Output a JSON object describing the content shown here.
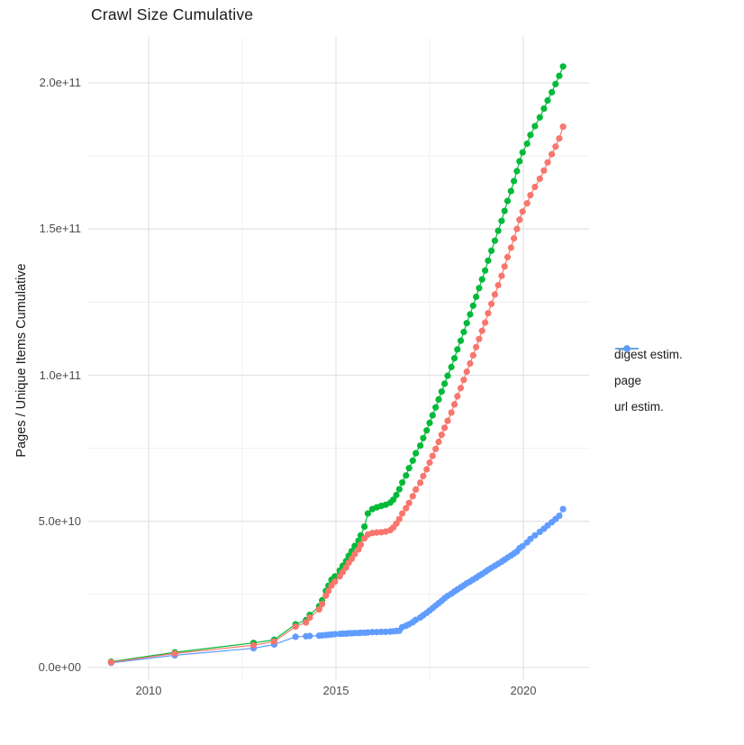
{
  "title": "Crawl Size Cumulative",
  "axes": {
    "y_title": "Pages / Unique Items Cumulative",
    "y_ticks": [
      "0.0e+00",
      "5.0e+10",
      "1.0e+11",
      "1.5e+11",
      "2.0e+11"
    ],
    "x_ticks": [
      "2010",
      "2015",
      "2020"
    ]
  },
  "legend": {
    "position": "right",
    "items": [
      {
        "label": "digest estim.",
        "color": "#F8766D"
      },
      {
        "label": "page",
        "color": "#00BA38"
      },
      {
        "label": "url estim.",
        "color": "#619CFF"
      }
    ]
  },
  "chart_data": {
    "type": "scatter",
    "title": "Crawl Size Cumulative",
    "xlabel": "",
    "ylabel": "Pages / Unique Items Cumulative",
    "x_unit": "year",
    "xlim": [
      2008.4,
      2021.75
    ],
    "ylim": [
      0,
      210000000000.0
    ],
    "grid": true,
    "x_major_gridlines": [
      2010,
      2015,
      2020
    ],
    "x_minor_gridlines": [
      2012.5,
      2017.5
    ],
    "y_major_gridlines": [
      0,
      50000000000.0,
      100000000000.0,
      150000000000.0,
      200000000000.0
    ],
    "y_minor_gridlines": [
      25000000000.0,
      75000000000.0,
      125000000000.0,
      175000000000.0
    ],
    "legend_position": "right",
    "value_scale": 10000000000.0,
    "x": [
      2009.0,
      2010.7,
      2012.8,
      2013.35,
      2013.92,
      2014.2,
      2014.3,
      2014.55,
      2014.63,
      2014.73,
      2014.8,
      2014.88,
      2014.97,
      2015.1,
      2015.18,
      2015.27,
      2015.34,
      2015.42,
      2015.5,
      2015.6,
      2015.66,
      2015.76,
      2015.85,
      2015.97,
      2016.09,
      2016.21,
      2016.33,
      2016.45,
      2016.53,
      2016.61,
      2016.69,
      2016.77,
      2016.87,
      2016.95,
      2017.05,
      2017.13,
      2017.25,
      2017.33,
      2017.42,
      2017.5,
      2017.58,
      2017.66,
      2017.74,
      2017.82,
      2017.9,
      2017.98,
      2018.08,
      2018.16,
      2018.24,
      2018.33,
      2018.41,
      2018.49,
      2018.58,
      2018.66,
      2018.74,
      2018.82,
      2018.9,
      2018.98,
      2019.06,
      2019.15,
      2019.24,
      2019.33,
      2019.42,
      2019.5,
      2019.58,
      2019.67,
      2019.75,
      2019.83,
      2019.9,
      2019.98,
      2020.1,
      2020.19,
      2020.31,
      2020.44,
      2020.55,
      2020.65,
      2020.76,
      2020.86,
      2020.96,
      2021.06
    ],
    "series": [
      {
        "name": "digest estim.",
        "color": "#F8766D",
        "values": [
          0.18,
          0.48,
          0.76,
          0.89,
          1.4,
          1.54,
          1.71,
          1.99,
          2.17,
          2.46,
          2.62,
          2.8,
          2.94,
          3.12,
          3.27,
          3.42,
          3.58,
          3.72,
          3.88,
          4.04,
          4.2,
          4.42,
          4.55,
          4.6,
          4.62,
          4.63,
          4.65,
          4.7,
          4.79,
          4.92,
          5.08,
          5.27,
          5.45,
          5.63,
          5.86,
          6.09,
          6.32,
          6.55,
          6.78,
          7.01,
          7.24,
          7.48,
          7.72,
          7.96,
          8.2,
          8.44,
          8.72,
          9.0,
          9.28,
          9.56,
          9.84,
          10.12,
          10.4,
          10.68,
          10.96,
          11.24,
          11.52,
          11.8,
          12.12,
          12.44,
          12.76,
          13.08,
          13.4,
          13.72,
          14.04,
          14.36,
          14.68,
          15.0,
          15.32,
          15.6,
          15.88,
          16.16,
          16.44,
          16.72,
          17.0,
          17.28,
          17.56,
          17.82,
          18.1,
          18.5
        ]
      },
      {
        "name": "page",
        "color": "#00BA38",
        "values": [
          0.2,
          0.52,
          0.84,
          0.95,
          1.48,
          1.62,
          1.8,
          2.1,
          2.3,
          2.62,
          2.8,
          3.0,
          3.12,
          3.32,
          3.48,
          3.64,
          3.82,
          3.98,
          4.16,
          4.34,
          4.52,
          4.82,
          5.27,
          5.42,
          5.48,
          5.53,
          5.57,
          5.64,
          5.74,
          5.9,
          6.1,
          6.33,
          6.57,
          6.82,
          7.08,
          7.33,
          7.59,
          7.85,
          8.11,
          8.37,
          8.63,
          8.9,
          9.17,
          9.44,
          9.71,
          9.98,
          10.28,
          10.58,
          10.88,
          11.18,
          11.48,
          11.78,
          12.08,
          12.38,
          12.68,
          12.98,
          13.28,
          13.58,
          13.92,
          14.26,
          14.6,
          14.94,
          15.28,
          15.62,
          15.96,
          16.3,
          16.64,
          16.98,
          17.32,
          17.62,
          17.92,
          18.22,
          18.52,
          18.82,
          19.12,
          19.4,
          19.68,
          19.96,
          20.24,
          20.56
        ]
      },
      {
        "name": "url estim.",
        "color": "#619CFF",
        "values": [
          0.16,
          0.42,
          0.66,
          0.79,
          1.05,
          1.07,
          1.08,
          1.09,
          1.1,
          1.11,
          1.12,
          1.13,
          1.14,
          1.15,
          1.16,
          1.16,
          1.17,
          1.17,
          1.18,
          1.18,
          1.19,
          1.19,
          1.2,
          1.21,
          1.21,
          1.22,
          1.22,
          1.23,
          1.24,
          1.25,
          1.26,
          1.38,
          1.43,
          1.48,
          1.55,
          1.63,
          1.71,
          1.79,
          1.87,
          1.95,
          2.03,
          2.12,
          2.2,
          2.28,
          2.37,
          2.45,
          2.52,
          2.6,
          2.67,
          2.74,
          2.81,
          2.88,
          2.94,
          3.01,
          3.07,
          3.14,
          3.2,
          3.27,
          3.34,
          3.41,
          3.48,
          3.55,
          3.62,
          3.69,
          3.76,
          3.83,
          3.9,
          3.97,
          4.08,
          4.15,
          4.28,
          4.4,
          4.52,
          4.64,
          4.75,
          4.86,
          4.97,
          5.08,
          5.19,
          5.42
        ]
      }
    ]
  }
}
